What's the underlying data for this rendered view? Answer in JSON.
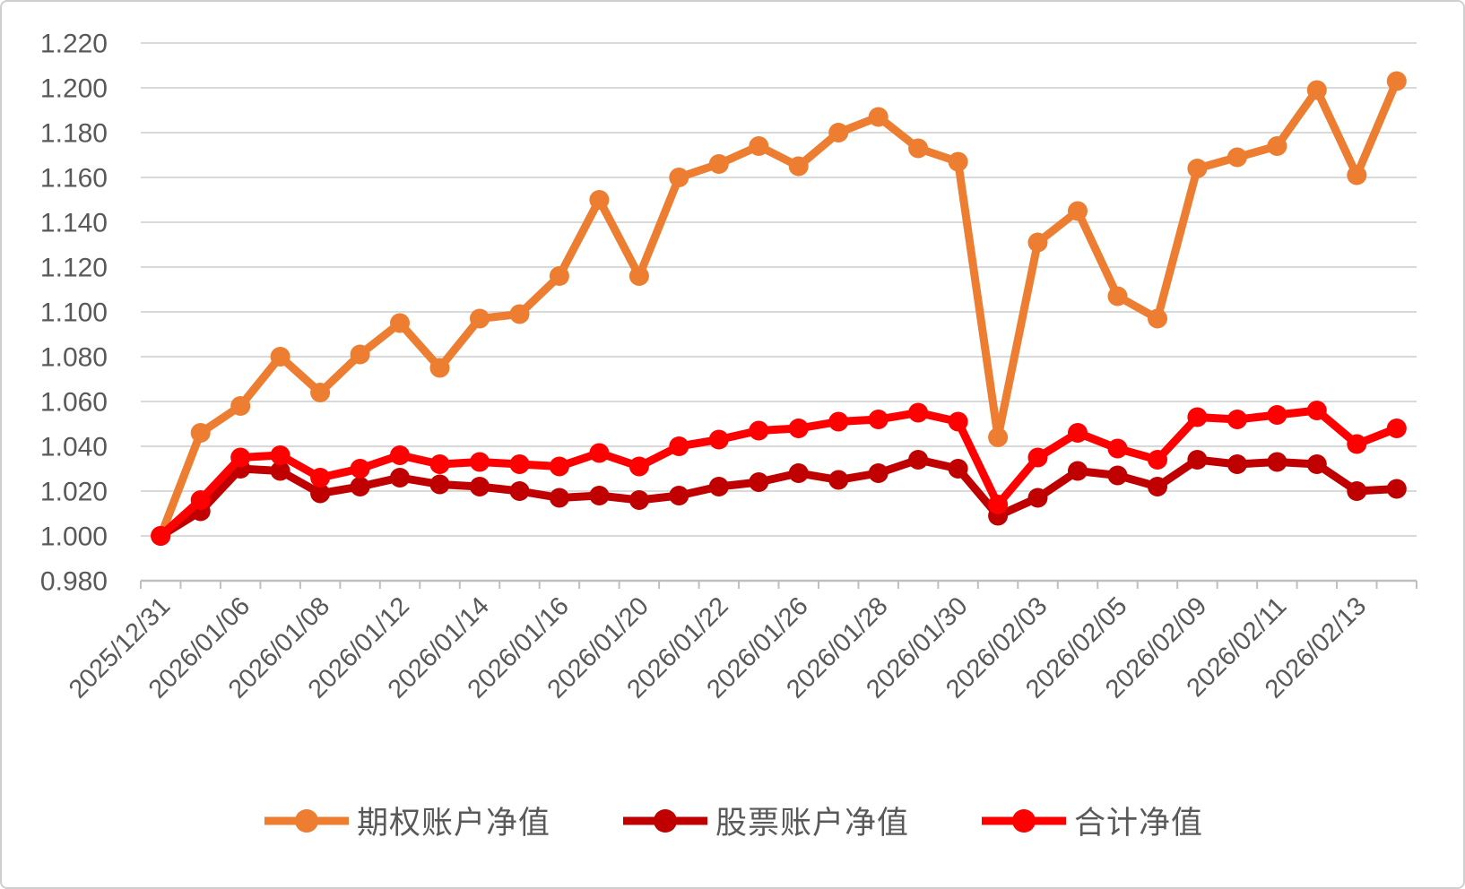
{
  "chart_data": {
    "type": "line",
    "n_points": 32,
    "x_tick_labels": [
      "2025/12/31",
      "2026/01/06",
      "2026/01/08",
      "2026/01/12",
      "2026/01/14",
      "2026/01/16",
      "2026/01/20",
      "2026/01/22",
      "2026/01/26",
      "2026/01/28",
      "2026/01/30",
      "2026/02/03",
      "2026/02/05",
      "2026/02/09",
      "2026/02/11",
      "2026/02/13"
    ],
    "x_label_every": 2,
    "series": [
      {
        "name": "期权账户净值",
        "color": "#ED7D31",
        "values": [
          1.0,
          1.046,
          1.058,
          1.08,
          1.064,
          1.081,
          1.095,
          1.075,
          1.097,
          1.099,
          1.116,
          1.15,
          1.116,
          1.16,
          1.166,
          1.174,
          1.165,
          1.18,
          1.187,
          1.173,
          1.167,
          1.044,
          1.131,
          1.145,
          1.107,
          1.097,
          1.164,
          1.169,
          1.174,
          1.199,
          1.161,
          1.203
        ]
      },
      {
        "name": "股票账户净值",
        "color": "#C00000",
        "values": [
          1.0,
          1.011,
          1.03,
          1.029,
          1.019,
          1.022,
          1.026,
          1.023,
          1.022,
          1.02,
          1.017,
          1.018,
          1.016,
          1.018,
          1.022,
          1.024,
          1.028,
          1.025,
          1.028,
          1.034,
          1.03,
          1.009,
          1.017,
          1.029,
          1.027,
          1.022,
          1.034,
          1.032,
          1.033,
          1.032,
          1.02,
          1.021
        ]
      },
      {
        "name": "合计净值",
        "color": "#FF0000",
        "values": [
          1.0,
          1.016,
          1.035,
          1.036,
          1.026,
          1.03,
          1.036,
          1.032,
          1.033,
          1.032,
          1.031,
          1.037,
          1.031,
          1.04,
          1.043,
          1.047,
          1.048,
          1.051,
          1.052,
          1.055,
          1.051,
          1.014,
          1.035,
          1.046,
          1.039,
          1.034,
          1.053,
          1.052,
          1.054,
          1.056,
          1.041,
          1.048
        ]
      }
    ],
    "ylim": [
      0.98,
      1.22
    ],
    "y_tick_step": 0.02,
    "y_decimals": 3,
    "grid": "horizontal",
    "legend_position": "bottom",
    "title": "",
    "xlabel": "",
    "ylabel": "",
    "colors": {
      "grid": "#D9D9D9",
      "axis": "#BFBFBF",
      "label": "#595959"
    }
  }
}
